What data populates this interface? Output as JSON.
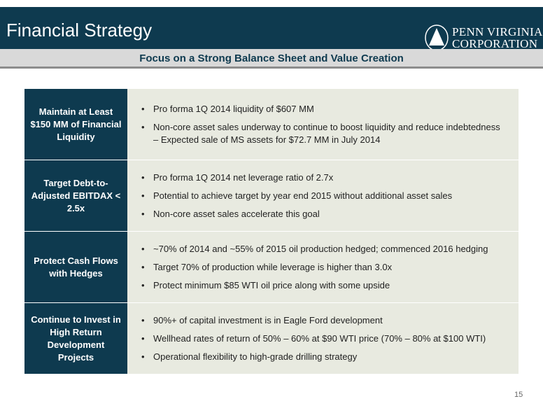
{
  "header": {
    "title": "Financial Strategy",
    "logo": {
      "line1": "PENN VIRGINIA",
      "line2": "CORPORATION",
      "icon": "triangle-mark-icon"
    }
  },
  "subtitle": "Focus on a Strong Balance Sheet and Value Creation",
  "rows": [
    {
      "label": "Maintain at Least $150 MM of Financial Liquidity",
      "bullets": [
        "Pro forma 1Q 2014 liquidity of $607 MM",
        "Non-core asset sales underway to continue to boost liquidity and reduce indebtedness – Expected sale of MS assets for $72.7 MM in July 2014"
      ]
    },
    {
      "label": "Target Debt-to-Adjusted EBITDAX < 2.5x",
      "bullets": [
        "Pro forma 1Q 2014 net leverage ratio of 2.7x",
        "Potential to achieve target by year end 2015 without additional asset sales",
        "Non-core asset sales accelerate this goal"
      ]
    },
    {
      "label": "Protect Cash Flows with Hedges",
      "bullets": [
        "~70% of 2014 and ~55% of 2015 oil production hedged; commenced 2016 hedging",
        "Target 70% of production while leverage is higher than 3.0x",
        "Protect minimum $85 WTI oil price along with some upside"
      ]
    },
    {
      "label": "Continue to Invest in High Return Development Projects",
      "bullets": [
        "90%+ of capital investment is in Eagle Ford development",
        "Wellhead rates of return of 50% – 60% at $90 WTI price (70% – 80% at $100 WTI)",
        "Operational flexibility to high-grade drilling strategy"
      ]
    }
  ],
  "page_number": "15",
  "colors": {
    "navy": "#0e3a4f",
    "cell_bg": "#e8eae0",
    "subtitle_bg": "#d9d9d9"
  }
}
